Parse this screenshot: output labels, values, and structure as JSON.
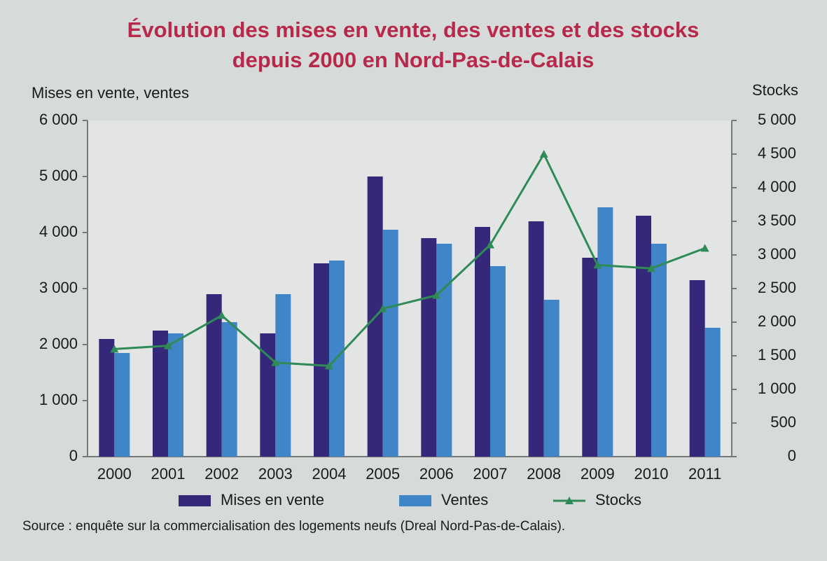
{
  "chart_data": {
    "type": "bar",
    "title": [
      "Évolution des mises en vente, des ventes et des stocks",
      "depuis 2000 en Nord-Pas-de-Calais"
    ],
    "y_label": "Mises en vente, ventes",
    "y2_label": "Stocks",
    "source": "Source : enquête sur la commercialisation des logements neufs (Dreal Nord-Pas-de-Calais).",
    "categories": [
      "2000",
      "2001",
      "2002",
      "2003",
      "2004",
      "2005",
      "2006",
      "2007",
      "2008",
      "2009",
      "2010",
      "2011"
    ],
    "series": [
      {
        "name": "Mises en vente",
        "color": "#35287a",
        "values": [
          2100,
          2250,
          2900,
          2200,
          3450,
          5000,
          3900,
          4100,
          4200,
          3550,
          4300,
          3150
        ]
      },
      {
        "name": "Ventes",
        "color": "#3f85c8",
        "values": [
          1850,
          2200,
          2400,
          2900,
          3500,
          4050,
          3800,
          3400,
          2800,
          4450,
          3800,
          2300
        ]
      },
      {
        "name": "Stocks",
        "color": "#2e8b57",
        "type": "line",
        "axis": "y2",
        "values": [
          1600,
          1650,
          2100,
          1400,
          1350,
          2200,
          2400,
          3150,
          4500,
          2850,
          2800,
          3100
        ]
      }
    ],
    "ylim": [
      0,
      6000
    ],
    "yticks": [
      0,
      {
        "value": 1000,
        "label": "1 000"
      },
      {
        "value": 2000,
        "label": "2 000"
      },
      {
        "value": 3000,
        "label": "3 000"
      },
      {
        "value": 4000,
        "label": "4 000"
      },
      {
        "value": 5000,
        "label": "5 000"
      },
      {
        "value": 6000,
        "label": "6 000"
      }
    ],
    "y2lim": [
      0,
      5000
    ],
    "y2ticks": [
      0,
      500,
      {
        "value": 1000,
        "label": "1 000"
      },
      {
        "value": 1500,
        "label": "1 500"
      },
      {
        "value": 2000,
        "label": "2 000"
      },
      {
        "value": 2500,
        "label": "2 500"
      },
      {
        "value": 3000,
        "label": "3 000"
      },
      {
        "value": 3500,
        "label": "3 500"
      },
      {
        "value": 4000,
        "label": "4 000"
      },
      {
        "value": 4500,
        "label": "4 500"
      },
      {
        "value": 5000,
        "label": "5 000"
      }
    ],
    "grid": false
  }
}
